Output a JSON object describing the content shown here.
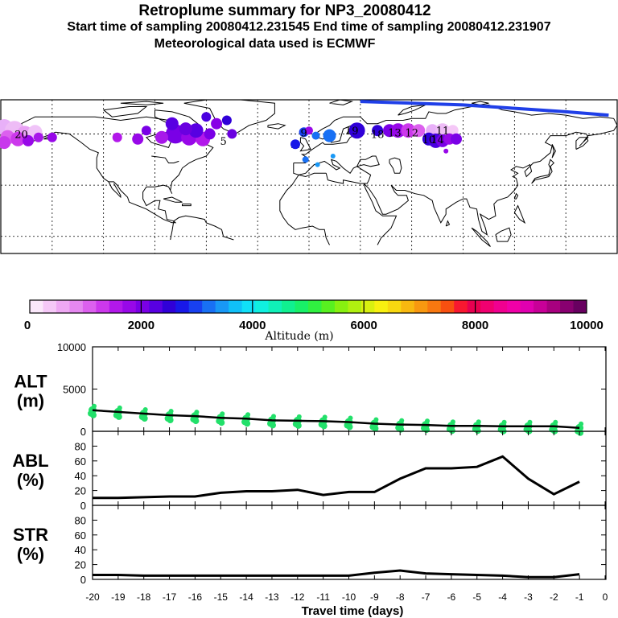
{
  "header": {
    "title": "Retroplume summary for NP3_20080412",
    "sampling_line": "Start time of sampling 20080412.231545     End time of sampling 20080412.231907",
    "met_line": "Meteorological data used is ECMWF"
  },
  "map": {
    "labels": [
      {
        "text": "19",
        "lon": 25,
        "lat": 62,
        "color": "#1a1ad8"
      },
      {
        "text": "18",
        "lon": 40,
        "lat": 60,
        "color": "#4a00e0"
      },
      {
        "text": "13",
        "lon": 50,
        "lat": 61,
        "color": "#9a00e8"
      },
      {
        "text": "12",
        "lon": 60,
        "lat": 61,
        "color": "#d070f0"
      },
      {
        "text": "11",
        "lon": 78,
        "lat": 62,
        "color": "#e8b0f8"
      },
      {
        "text": "10",
        "lon": 70,
        "lat": 57,
        "color": "#4a00e0"
      },
      {
        "text": "14",
        "lon": 75,
        "lat": 57,
        "color": "#6a00e0"
      },
      {
        "text": "9",
        "lon": -3,
        "lat": 61,
        "color": "#2850e8"
      },
      {
        "text": "5",
        "lon": -50,
        "lat": 56,
        "color": "#7000e8"
      },
      {
        "text": "20",
        "lon": -168,
        "lat": 60,
        "color": "#e8b0f8"
      }
    ],
    "colors": {
      "track": "#1f3fe8",
      "land": "#000000",
      "grid": "#000000"
    }
  },
  "colorbar": {
    "ticks": [
      "0",
      "2000",
      "4000",
      "6000",
      "8000",
      "10000"
    ],
    "label": "Altitude (m)",
    "colors": [
      "#fbe8fb",
      "#f5c8f7",
      "#eea8f3",
      "#e588f0",
      "#dc60ee",
      "#cc38ec",
      "#b218ea",
      "#9808e8",
      "#7a00e6",
      "#5800e2",
      "#3000d8",
      "#1818e8",
      "#1840f0",
      "#1870f4",
      "#1898f6",
      "#10c0f8",
      "#10e0f8",
      "#10f0e0",
      "#10f0b8",
      "#10f090",
      "#18f068",
      "#30f040",
      "#58f020",
      "#88f010",
      "#b0f010",
      "#d8f010",
      "#f8f010",
      "#f8d810",
      "#f8b810",
      "#f89810",
      "#f87810",
      "#f85010",
      "#f81830",
      "#e80050",
      "#f00070",
      "#f00090",
      "#f000a8",
      "#e000b0",
      "#c80098",
      "#a8007f",
      "#880070",
      "#680060"
    ]
  },
  "chart_data": [
    {
      "type": "scatter",
      "name": "ALT",
      "panel_label": "ALT",
      "unit_label": "(m)",
      "x": [
        -20,
        -19,
        -18,
        -17,
        -16,
        -15,
        -14,
        -13,
        -12,
        -11,
        -10,
        -9,
        -8,
        -7,
        -6,
        -5,
        -4,
        -3,
        -2,
        -1
      ],
      "values": [
        2500,
        2300,
        2100,
        1900,
        1800,
        1600,
        1500,
        1300,
        1250,
        1200,
        1100,
        900,
        800,
        750,
        650,
        650,
        600,
        600,
        600,
        400
      ],
      "xlim": [
        -20,
        0
      ],
      "ylim": [
        0,
        10000
      ],
      "yticks": [
        "0",
        "5000",
        "10000"
      ],
      "xlabel": "Travel time (days)",
      "xticks": [
        "-20",
        "-19",
        "-18",
        "-17",
        "-16",
        "-15",
        "-14",
        "-13",
        "-12",
        "-11",
        "-10",
        "-9",
        "-8",
        "-7",
        "-6",
        "-5",
        "-4",
        "-3",
        "-2",
        "-1",
        "0"
      ],
      "point_color": "#22e06a",
      "line_color": "#000000"
    },
    {
      "type": "line",
      "name": "ABL",
      "panel_label": "ABL",
      "unit_label": "(%)",
      "x": [
        -20,
        -19,
        -18,
        -17,
        -16,
        -15,
        -14,
        -13,
        -12,
        -11,
        -10,
        -9,
        -8,
        -7,
        -6,
        -5,
        -4,
        -3,
        -2,
        -1
      ],
      "values": [
        10,
        10,
        11,
        12,
        12,
        17,
        19,
        19,
        21,
        14,
        18,
        18,
        36,
        50,
        50,
        52,
        66,
        36,
        15,
        32
      ],
      "xlim": [
        -20,
        0
      ],
      "ylim": [
        0,
        100
      ],
      "yticks": [
        "0",
        "20",
        "40",
        "60",
        "80"
      ]
    },
    {
      "type": "line",
      "name": "STR",
      "panel_label": "STR",
      "unit_label": "(%)",
      "x": [
        -20,
        -19,
        -18,
        -17,
        -16,
        -15,
        -14,
        -13,
        -12,
        -11,
        -10,
        -9,
        -8,
        -7,
        -6,
        -5,
        -4,
        -3,
        -2,
        -1
      ],
      "values": [
        6,
        6,
        5,
        5,
        5,
        5,
        5,
        5,
        5,
        5,
        5,
        9,
        12,
        8,
        7,
        6,
        5,
        3,
        3,
        7
      ],
      "xlim": [
        -20,
        0
      ],
      "ylim": [
        0,
        100
      ],
      "yticks": [
        "0",
        "20",
        "40",
        "60",
        "80"
      ]
    }
  ]
}
